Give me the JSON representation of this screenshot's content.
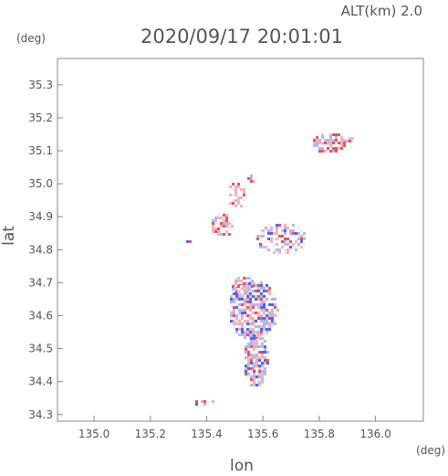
{
  "header": {
    "altitude_label": "ALT(km) 2.0",
    "timestamp": "2020/09/17 20:01:01",
    "y_unit": "(deg)",
    "x_unit": "(deg)"
  },
  "chart_data": {
    "type": "heatmap",
    "title": "2020/09/17 20:01:01",
    "subtitle": "ALT(km) 2.0",
    "xlabel": "lon",
    "ylabel": "lat",
    "xlim": [
      134.87,
      136.17
    ],
    "ylim": [
      34.28,
      35.38
    ],
    "x_ticks": [
      135.0,
      135.2,
      135.4,
      135.6,
      135.8,
      136.0
    ],
    "y_ticks": [
      34.3,
      34.4,
      34.5,
      34.6,
      34.7,
      34.8,
      34.9,
      35.0,
      35.1,
      35.2,
      35.3
    ],
    "x_tick_labels": [
      "135.0",
      "135.2",
      "135.4",
      "135.6",
      "135.8",
      "136.0"
    ],
    "y_tick_labels": [
      "34.3",
      "34.4",
      "34.5",
      "34.6",
      "34.7",
      "34.8",
      "34.9",
      "35.0",
      "35.1",
      "35.2",
      "35.3"
    ],
    "colors": {
      "positive": "#e8555e",
      "negative": "#5566e0",
      "light_positive": "#f6b3b8",
      "light_negative": "#b0b8f2"
    },
    "regions": [
      {
        "lon": 135.56,
        "lat": 34.62,
        "rlon": 0.085,
        "rlat": 0.09,
        "density": 0.85,
        "bias": 0.0
      },
      {
        "lon": 135.57,
        "lat": 34.47,
        "rlon": 0.045,
        "rlat": 0.08,
        "density": 0.8,
        "bias": 0.0
      },
      {
        "lon": 135.52,
        "lat": 34.7,
        "rlon": 0.04,
        "rlat": 0.025,
        "density": 0.75,
        "bias": 0.2
      },
      {
        "lon": 135.66,
        "lat": 34.84,
        "rlon": 0.09,
        "rlat": 0.045,
        "density": 0.55,
        "bias": 0.1
      },
      {
        "lon": 135.45,
        "lat": 34.88,
        "rlon": 0.04,
        "rlat": 0.035,
        "density": 0.7,
        "bias": 0.5
      },
      {
        "lon": 135.5,
        "lat": 34.97,
        "rlon": 0.03,
        "rlat": 0.04,
        "density": 0.6,
        "bias": 0.6
      },
      {
        "lon": 135.83,
        "lat": 35.13,
        "rlon": 0.06,
        "rlat": 0.03,
        "density": 0.75,
        "bias": 0.8
      },
      {
        "lon": 135.4,
        "lat": 34.34,
        "rlon": 0.05,
        "rlat": 0.01,
        "density": 0.5,
        "bias": 0.0
      },
      {
        "lon": 135.33,
        "lat": 34.83,
        "rlon": 0.01,
        "rlat": 0.015,
        "density": 0.5,
        "bias": -0.3
      },
      {
        "lon": 135.9,
        "lat": 35.14,
        "rlon": 0.015,
        "rlat": 0.01,
        "density": 0.6,
        "bias": 0.6
      },
      {
        "lon": 135.55,
        "lat": 35.02,
        "rlon": 0.015,
        "rlat": 0.015,
        "density": 0.6,
        "bias": 0.7
      }
    ]
  }
}
